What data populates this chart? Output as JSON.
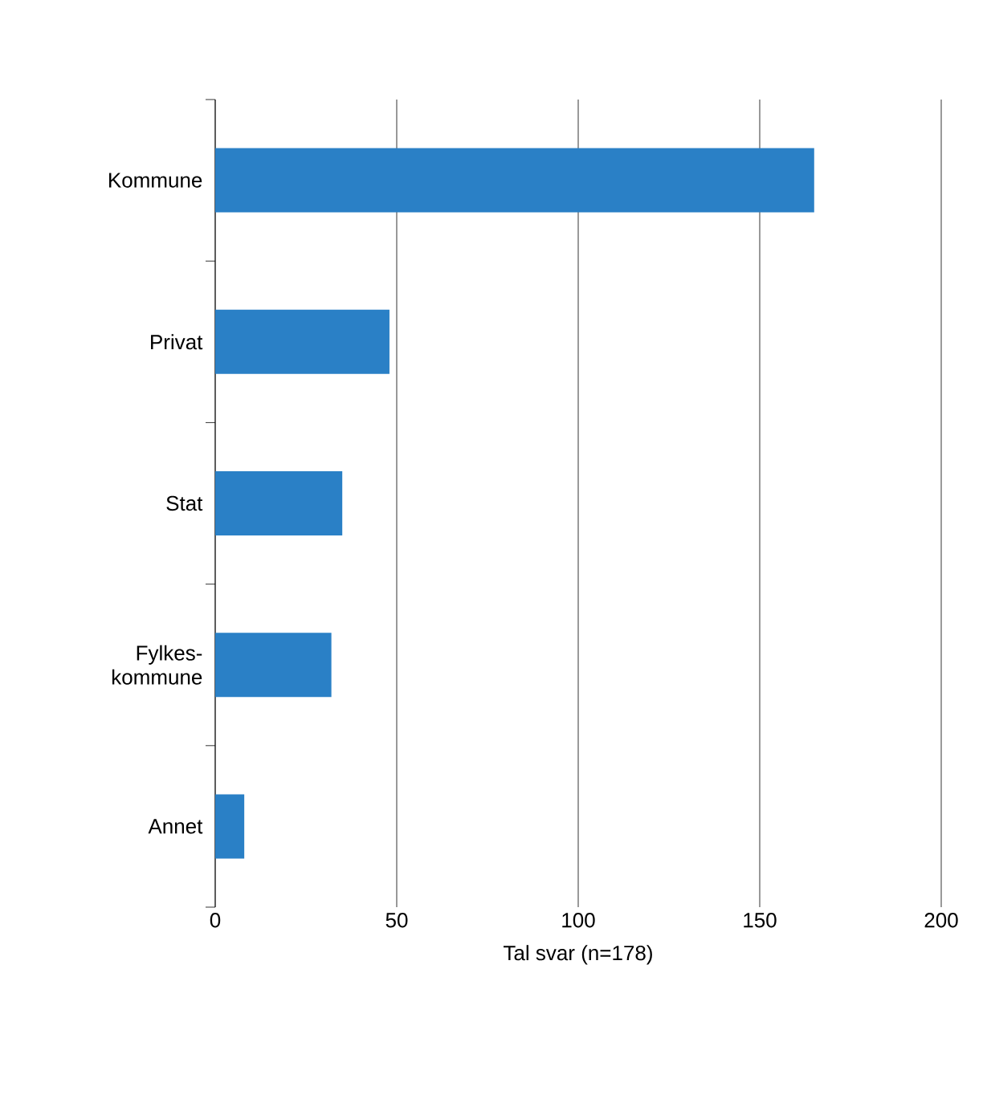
{
  "chart_data": {
    "type": "bar",
    "orientation": "horizontal",
    "xlabel": "Tal svar (n=178)",
    "categories": [
      "Kommune",
      "Privat",
      "Stat",
      "Fylkes-kommune",
      "Annet"
    ],
    "values": [
      165,
      48,
      35,
      32,
      8
    ],
    "color": "#2a80c6",
    "xlim": [
      0,
      200
    ],
    "xticks": [
      0,
      50,
      100,
      150,
      200
    ],
    "grid": "x"
  }
}
